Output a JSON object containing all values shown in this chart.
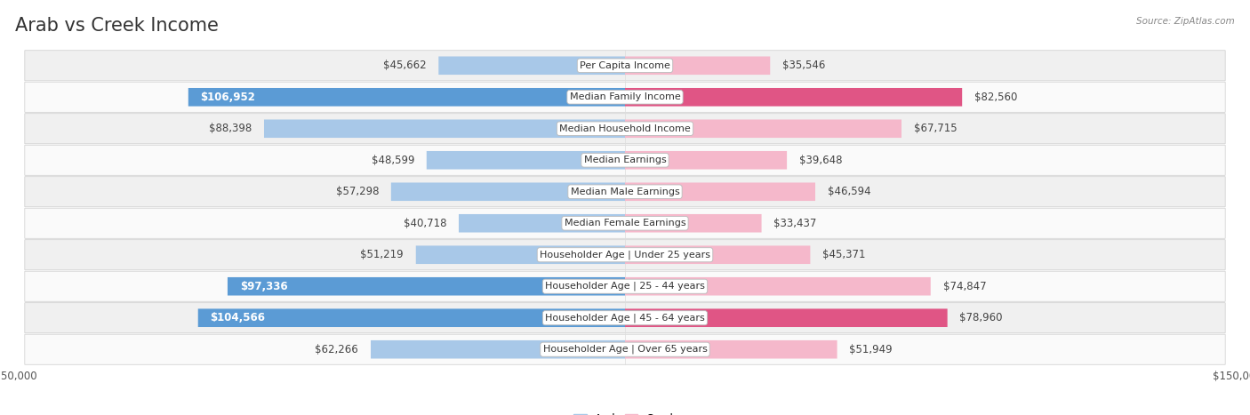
{
  "title": "Arab vs Creek Income",
  "source": "Source: ZipAtlas.com",
  "categories": [
    "Per Capita Income",
    "Median Family Income",
    "Median Household Income",
    "Median Earnings",
    "Median Male Earnings",
    "Median Female Earnings",
    "Householder Age | Under 25 years",
    "Householder Age | 25 - 44 years",
    "Householder Age | 45 - 64 years",
    "Householder Age | Over 65 years"
  ],
  "arab_values": [
    45662,
    106952,
    88398,
    48599,
    57298,
    40718,
    51219,
    97336,
    104566,
    62266
  ],
  "creek_values": [
    35546,
    82560,
    67715,
    39648,
    46594,
    33437,
    45371,
    74847,
    78960,
    51949
  ],
  "arab_labels": [
    "$45,662",
    "$106,952",
    "$88,398",
    "$48,599",
    "$57,298",
    "$40,718",
    "$51,219",
    "$97,336",
    "$104,566",
    "$62,266"
  ],
  "creek_labels": [
    "$35,546",
    "$82,560",
    "$67,715",
    "$39,648",
    "$46,594",
    "$33,437",
    "$45,371",
    "$74,847",
    "$78,960",
    "$51,949"
  ],
  "arab_color_light": "#a8c8e8",
  "arab_color_dark": "#5b9bd5",
  "creek_color_light": "#f5b8cb",
  "creek_color_dark": "#e05585",
  "arab_label_inside_threshold": 90000,
  "creek_label_inside_threshold": 75000,
  "max_value": 150000,
  "background_color": "#ffffff",
  "row_bg_even": "#f0f0f0",
  "row_bg_odd": "#fafafa",
  "title_fontsize": 15,
  "label_fontsize": 8.5,
  "axis_fontsize": 8.5,
  "legend_arab": "Arab",
  "legend_creek": "Creek"
}
